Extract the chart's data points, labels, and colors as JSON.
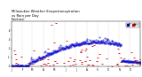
{
  "title": "Milwaukee Weather Evapotranspiration vs Rain per Day (Inches)",
  "title_fontsize": 3.0,
  "bg_color": "#ffffff",
  "et_color": "#0000cc",
  "rain_color": "#cc0000",
  "ylim": [
    0,
    0.5
  ],
  "xlim": [
    0,
    364
  ],
  "legend_labels": [
    "ET",
    "Rain"
  ],
  "grid_color": "#bbbbbb",
  "month_positions": [
    0,
    31,
    59,
    90,
    120,
    151,
    181,
    212,
    243,
    273,
    304,
    334
  ],
  "month_labels": [
    "J",
    "F",
    "M",
    "A",
    "M",
    "J",
    "J",
    "A",
    "S",
    "O",
    "N",
    "D"
  ],
  "et_seed": 10,
  "rain_seed": 20
}
